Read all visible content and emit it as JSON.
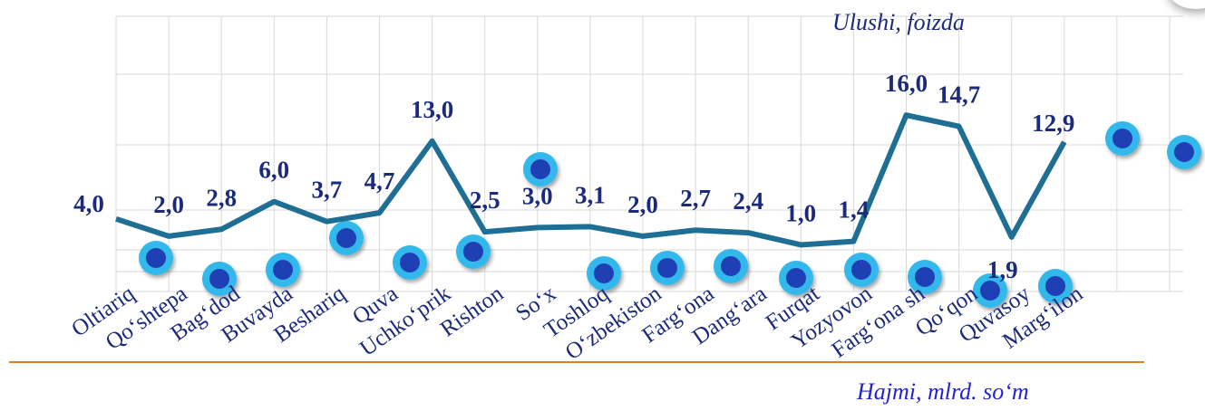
{
  "chart_data": {
    "type": "line",
    "categories": [
      "Oltiariq",
      "Qo‘shtepa",
      "Bag‘dod",
      "Buvayda",
      "Beshariq",
      "Quva",
      "Uchko‘prik",
      "Rishton",
      "So‘x",
      "Toshloq",
      "O‘zbekiston",
      "Farg‘ona",
      "Dang‘ara",
      "Furqat",
      "Yozyovon",
      "Farg‘ona sh",
      "Qo‘qon",
      "Quvasoy",
      "Marg‘ilon"
    ],
    "series": [
      {
        "values": [
          4.0,
          2.0,
          2.8,
          6.0,
          3.7,
          4.7,
          13.0,
          2.5,
          3.0,
          3.1,
          2.0,
          2.7,
          2.4,
          1.0,
          1.4,
          16.0,
          14.7,
          1.9,
          12.9
        ],
        "labels": [
          "4,0",
          "2,0",
          "2,8",
          "6,0",
          "3,7",
          "4,7",
          "13,0",
          "2,5",
          "3,0",
          "3,1",
          "2,0",
          "2,7",
          "2,4",
          "1,0",
          "1,4",
          "16,0",
          "14,7",
          "1,9",
          "12,9"
        ]
      }
    ],
    "ylabel": "Ulushi, foizda",
    "xlabel": "Hajmi, mlrd. so‘m",
    "grid": true,
    "line_color": "#1f6f95",
    "label_color": "#1b2a7a",
    "category_color": "#1b2a7a",
    "marker_outer": "#33b8ea",
    "marker_inner": "#1f3fb4",
    "axis_line_color": "#d9822b"
  }
}
